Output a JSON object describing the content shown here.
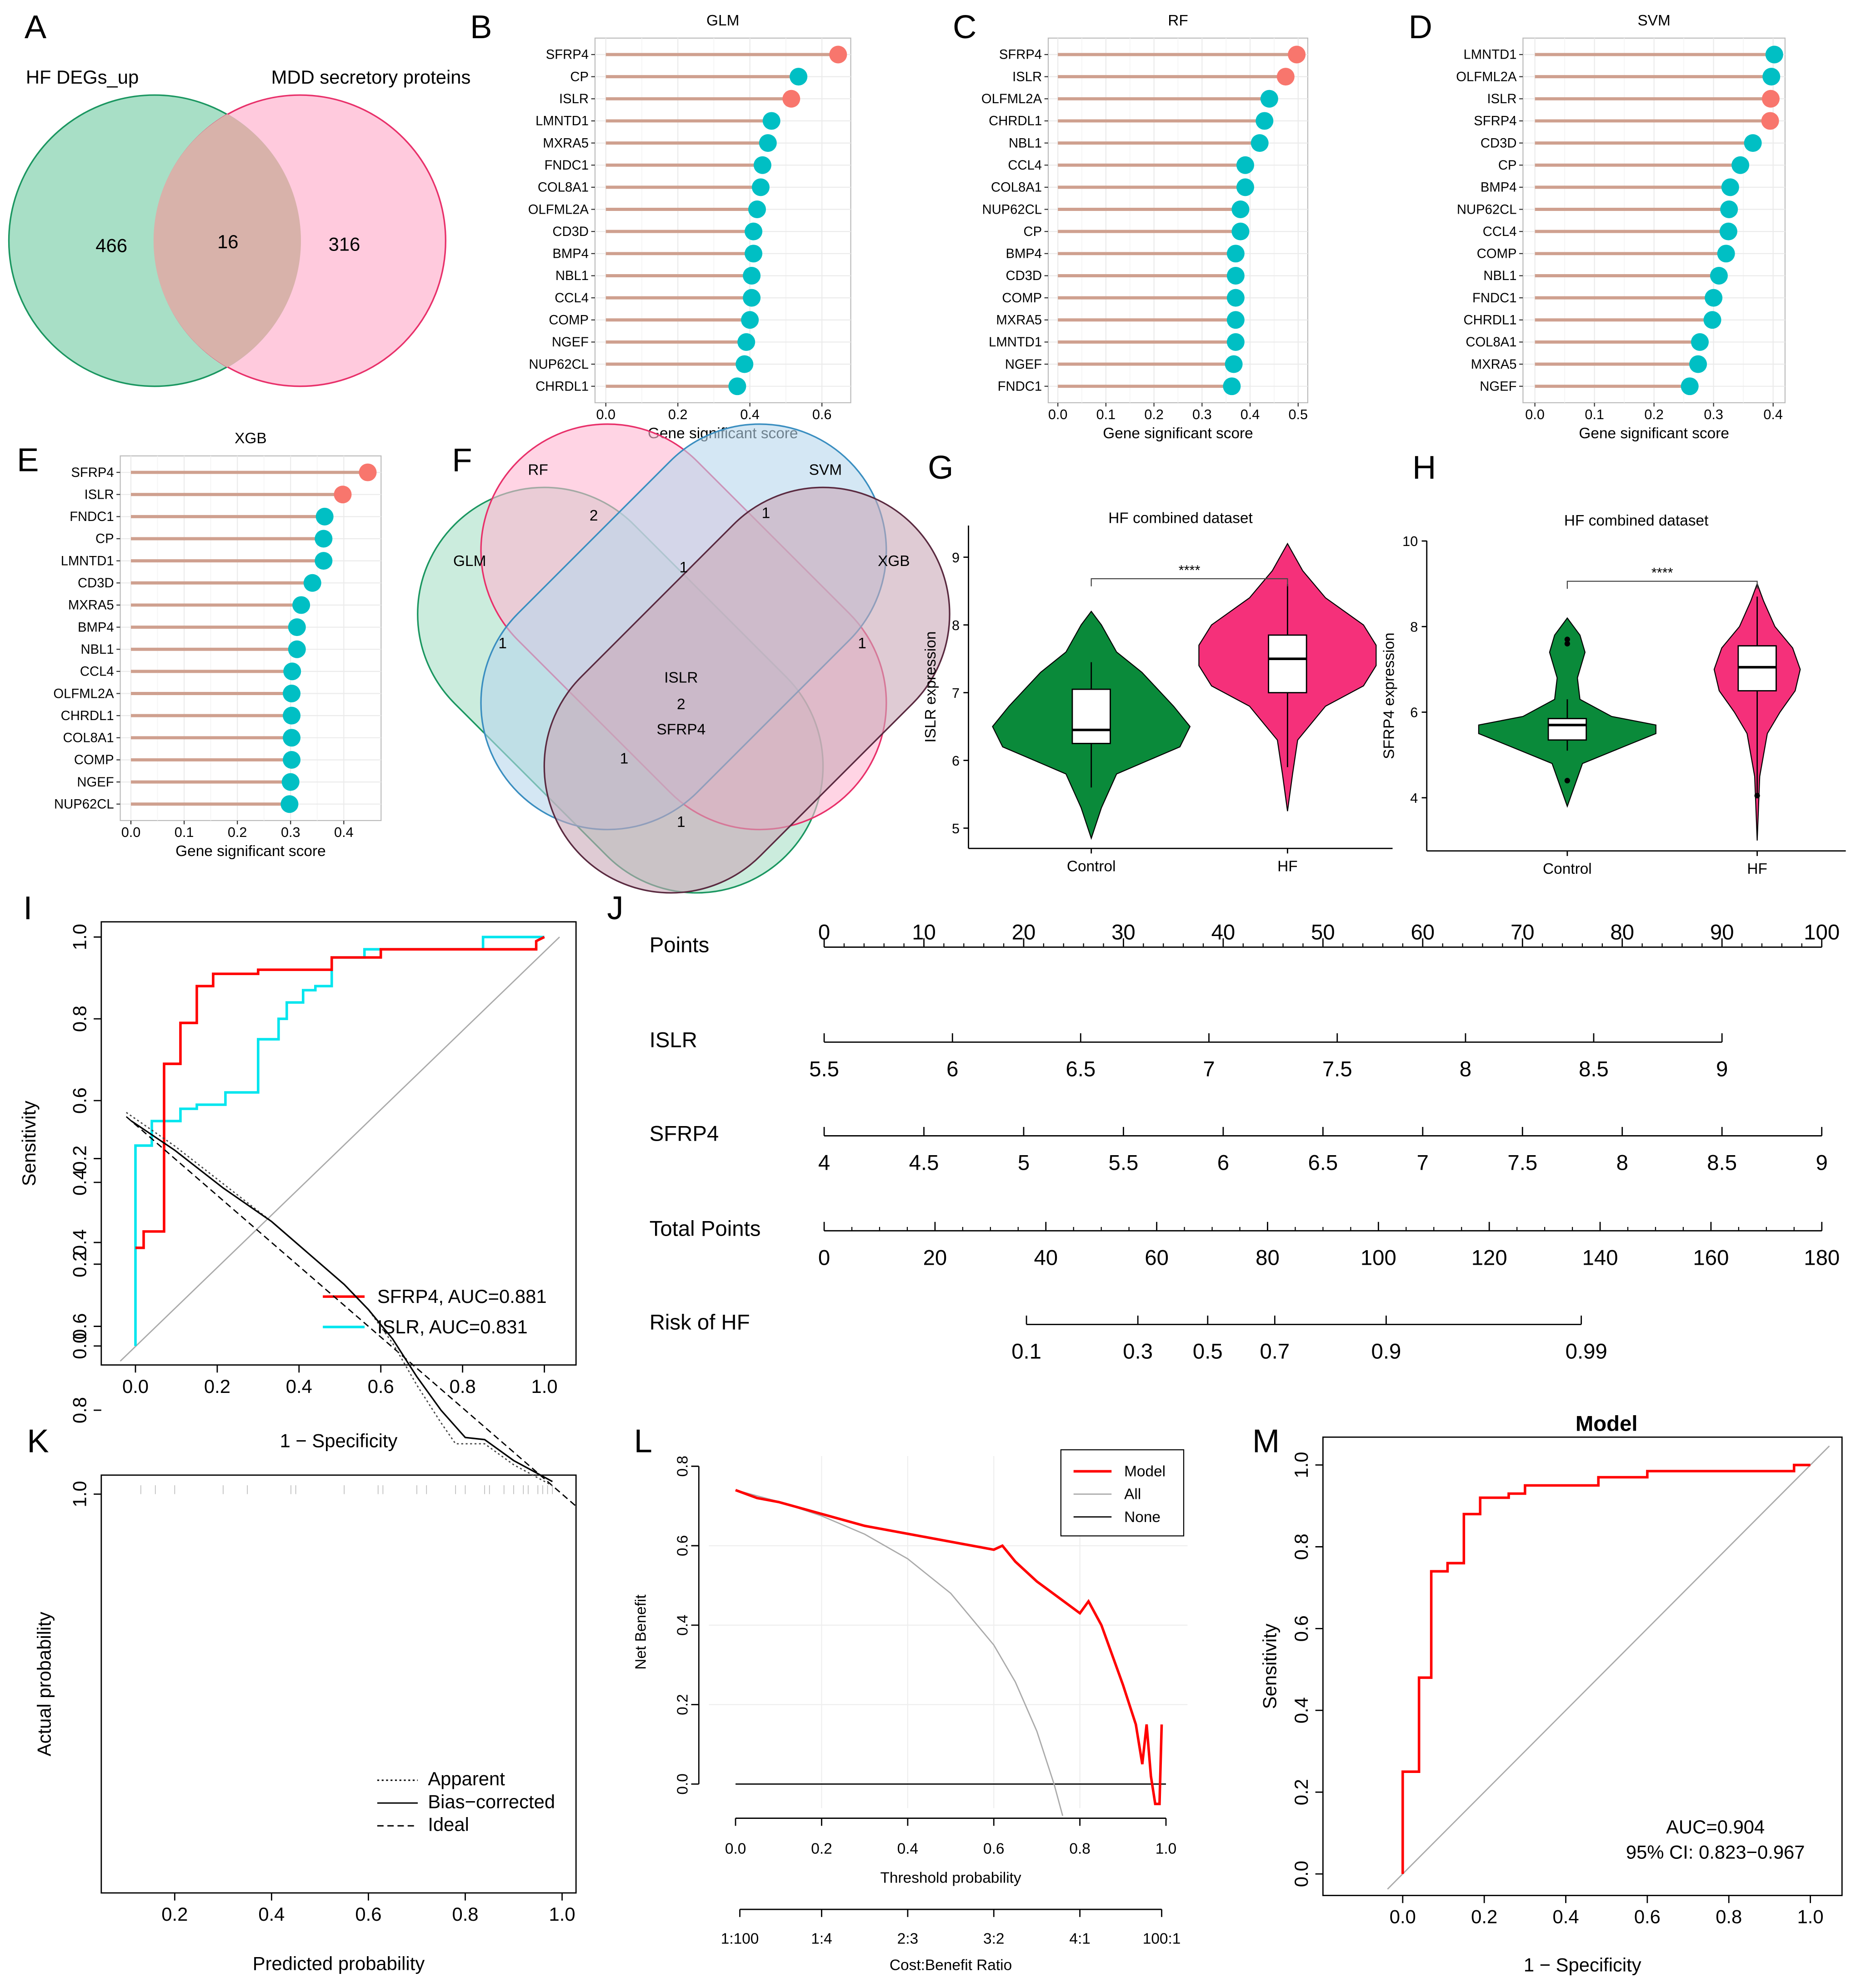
{
  "panel_letters": [
    "A",
    "B",
    "C",
    "D",
    "E",
    "F",
    "G",
    "H",
    "I",
    "J",
    "K",
    "L",
    "M"
  ],
  "chart_data": [
    {
      "panel": "A",
      "type": "venn",
      "sets": [
        "HF DEGs_up",
        "MDD secretory proteins"
      ],
      "counts": {
        "only_1": "466",
        "both": "16",
        "only_2": "316"
      },
      "colors": [
        "#a8dfc6",
        "#ffb8d2"
      ]
    },
    {
      "panel": "B",
      "type": "lollipop",
      "title": "GLM",
      "xlabel": "Gene significant score",
      "xticks": [
        "0.0",
        "0.2",
        "0.4",
        "0.6"
      ],
      "xlim": [
        -0.03,
        0.68
      ],
      "genes": [
        "SFRP4",
        "CP",
        "ISLR",
        "LMNTD1",
        "MXRA5",
        "FNDC1",
        "COL8A1",
        "OLFML2A",
        "CD3D",
        "BMP4",
        "NBL1",
        "CCL4",
        "COMP",
        "NGEF",
        "NUP62CL",
        "CHRDL1"
      ],
      "values": [
        0.645,
        0.535,
        0.515,
        0.46,
        0.45,
        0.435,
        0.43,
        0.42,
        0.41,
        0.41,
        0.405,
        0.405,
        0.4,
        0.39,
        0.385,
        0.365
      ]
    },
    {
      "panel": "C",
      "type": "lollipop",
      "title": "RF",
      "xlabel": "Gene significant score",
      "xticks": [
        "0.0",
        "0.1",
        "0.2",
        "0.3",
        "0.4",
        "0.5"
      ],
      "xlim": [
        -0.02,
        0.52
      ],
      "genes": [
        "SFRP4",
        "ISLR",
        "OLFML2A",
        "CHRDL1",
        "NBL1",
        "CCL4",
        "COL8A1",
        "NUP62CL",
        "CP",
        "BMP4",
        "CD3D",
        "COMP",
        "MXRA5",
        "LMNTD1",
        "NGEF",
        "FNDC1"
      ],
      "values": [
        0.497,
        0.474,
        0.44,
        0.43,
        0.42,
        0.39,
        0.39,
        0.38,
        0.38,
        0.37,
        0.37,
        0.37,
        0.37,
        0.37,
        0.366,
        0.362
      ]
    },
    {
      "panel": "D",
      "type": "lollipop",
      "title": "SVM",
      "xlabel": "Gene significant score",
      "xticks": [
        "0.0",
        "0.1",
        "0.2",
        "0.3",
        "0.4"
      ],
      "xlim": [
        -0.02,
        0.42
      ],
      "genes": [
        "LMNTD1",
        "OLFML2A",
        "ISLR",
        "SFRP4",
        "CD3D",
        "CP",
        "BMP4",
        "NUP62CL",
        "CCL4",
        "COMP",
        "NBL1",
        "FNDC1",
        "CHRDL1",
        "COL8A1",
        "MXRA5",
        "NGEF"
      ],
      "values": [
        0.402,
        0.397,
        0.396,
        0.395,
        0.366,
        0.345,
        0.328,
        0.326,
        0.325,
        0.321,
        0.309,
        0.3,
        0.298,
        0.277,
        0.274,
        0.26
      ]
    },
    {
      "panel": "E",
      "type": "lollipop",
      "title": "XGB",
      "xlabel": "Gene significant score",
      "xticks": [
        "0.0",
        "0.1",
        "0.2",
        "0.3",
        "0.4"
      ],
      "xlim": [
        -0.02,
        0.47
      ],
      "genes": [
        "SFRP4",
        "ISLR",
        "FNDC1",
        "CP",
        "LMNTD1",
        "CD3D",
        "MXRA5",
        "BMP4",
        "NBL1",
        "CCL4",
        "OLFML2A",
        "CHRDL1",
        "COL8A1",
        "COMP",
        "NGEF",
        "NUP62CL"
      ],
      "values": [
        0.445,
        0.398,
        0.364,
        0.362,
        0.362,
        0.341,
        0.32,
        0.312,
        0.312,
        0.303,
        0.302,
        0.302,
        0.302,
        0.302,
        0.3,
        0.298
      ]
    },
    {
      "panel": "F",
      "type": "venn",
      "sets": [
        "GLM",
        "RF",
        "SVM",
        "XGB"
      ],
      "counts": {
        "RF_only": "2",
        "SVM_only": "1",
        "GLM_only": "1",
        "XGB_only": "1",
        "RF_SVM": "1",
        "GLM_SVM_XGB": "1",
        "GLM_XGB": "1",
        "all": "2",
        "all_genes": [
          "ISLR",
          "SFRP4"
        ]
      },
      "colors": [
        "#a8dfc6",
        "#ffb8d2",
        "#b8d7ec",
        "#c9a8b8"
      ]
    },
    {
      "panel": "G",
      "type": "violin",
      "title": "HF combined dataset",
      "ylabel": "ISLR expression",
      "categories": [
        "Control",
        "HF"
      ],
      "yticks": [
        "5",
        "6",
        "7",
        "8",
        "9"
      ],
      "ylim": [
        4.6,
        9.5
      ],
      "significance": "****",
      "boxes": [
        {
          "min": 5.6,
          "q1": 6.25,
          "median": 6.45,
          "q3": 7.05,
          "max": 7.45
        },
        {
          "min": 5.9,
          "q1": 7.0,
          "median": 7.5,
          "q3": 7.85,
          "max": 8.6
        }
      ],
      "colors": [
        "#0a8a3a",
        "#f5307a"
      ]
    },
    {
      "panel": "H",
      "type": "violin",
      "title": "HF combined dataset",
      "ylabel": "SFRP4 expression",
      "categories": [
        "Control",
        "HF"
      ],
      "yticks": [
        "4",
        "6",
        "8",
        "10"
      ],
      "ylim": [
        3.3,
        10.2
      ],
      "significance": "****",
      "boxes": [
        {
          "min": 5.1,
          "q1": 5.35,
          "median": 5.7,
          "q3": 5.85,
          "max": 6.3,
          "outliers": [
            7.7,
            7.6,
            4.4
          ]
        },
        {
          "min": 4.1,
          "q1": 6.5,
          "median": 7.05,
          "q3": 7.55,
          "max": 8.7,
          "outliers": [
            4.05
          ]
        }
      ],
      "colors": [
        "#0a8a3a",
        "#f5307a"
      ]
    },
    {
      "panel": "I",
      "type": "line",
      "xlabel": "1 − Specificity",
      "ylabel": "Sensitivity",
      "xticks": [
        "0.0",
        "0.2",
        "0.4",
        "0.6",
        "0.8",
        "1.0"
      ],
      "yticks": [
        "0.0",
        "0.2",
        "0.4",
        "0.6",
        "0.8",
        "1.0"
      ],
      "legend": "bottom-right",
      "series": [
        {
          "name": "SFRP4, AUC=0.881",
          "color": "#ff0000",
          "x": [
            0,
            0.02,
            0.02,
            0.07,
            0.07,
            0.11,
            0.11,
            0.15,
            0.15,
            0.19,
            0.19,
            0.3,
            0.3,
            0.48,
            0.48,
            0.6,
            0.6,
            0.98,
            0.98,
            1
          ],
          "y": [
            0.24,
            0.24,
            0.28,
            0.28,
            0.69,
            0.69,
            0.79,
            0.79,
            0.88,
            0.88,
            0.91,
            0.91,
            0.92,
            0.92,
            0.95,
            0.95,
            0.97,
            0.97,
            0.99,
            1
          ]
        },
        {
          "name": "ISLR, AUC=0.831",
          "color": "#00e5ee",
          "x": [
            0,
            0,
            0.04,
            0.04,
            0.11,
            0.11,
            0.15,
            0.15,
            0.22,
            0.22,
            0.3,
            0.3,
            0.35,
            0.35,
            0.37,
            0.37,
            0.41,
            0.41,
            0.44,
            0.44,
            0.48,
            0.48,
            0.56,
            0.56,
            0.85,
            0.85,
            1
          ],
          "y": [
            0,
            0.49,
            0.49,
            0.55,
            0.55,
            0.58,
            0.58,
            0.59,
            0.59,
            0.62,
            0.62,
            0.75,
            0.75,
            0.8,
            0.8,
            0.84,
            0.84,
            0.87,
            0.87,
            0.88,
            0.88,
            0.95,
            0.95,
            0.97,
            0.97,
            1,
            1
          ]
        }
      ]
    },
    {
      "panel": "J",
      "type": "nomogram",
      "rows": [
        {
          "label": "Points",
          "ticks": [
            "0",
            "10",
            "20",
            "30",
            "40",
            "50",
            "60",
            "70",
            "80",
            "90",
            "100"
          ],
          "points": [
            0,
            10,
            20,
            30,
            40,
            50,
            60,
            70,
            80,
            90,
            100
          ]
        },
        {
          "label": "ISLR",
          "ticks": [
            "5.5",
            "6",
            "6.5",
            "7",
            "7.5",
            "8",
            "8.5",
            "9"
          ],
          "points": [
            0,
            12.86,
            25.71,
            38.57,
            51.43,
            64.29,
            77.14,
            90
          ]
        },
        {
          "label": "SFRP4",
          "ticks": [
            "4",
            "4.5",
            "5",
            "5.5",
            "6",
            "6.5",
            "7",
            "7.5",
            "8",
            "8.5",
            "9"
          ],
          "points": [
            0,
            10,
            20,
            30,
            40,
            50,
            60,
            70,
            80,
            90,
            100
          ]
        },
        {
          "label": "Total Points",
          "ticks": [
            "0",
            "20",
            "40",
            "60",
            "80",
            "100",
            "120",
            "140",
            "160",
            "180"
          ],
          "points": [
            0,
            20,
            40,
            60,
            80,
            100,
            120,
            140,
            160,
            180
          ],
          "scale": "total"
        },
        {
          "label": "Risk of HF",
          "ticks": [
            "0.1",
            "0.3",
            "0.5",
            "0.7",
            "0.9",
            "0.99"
          ],
          "points": [
            36.5,
            56.6,
            69.2,
            81.3,
            101.4,
            136.6
          ],
          "scale": "total"
        }
      ]
    },
    {
      "panel": "K",
      "type": "line",
      "xlabel": "Predicted probability",
      "ylabel": "Actual probability",
      "xticks": [
        "0.2",
        "0.4",
        "0.6",
        "0.8",
        "1.0"
      ],
      "yticks": [
        "0.2",
        "0.4",
        "0.6",
        "0.8",
        "1.0"
      ],
      "legend": "bottom-right",
      "series": [
        {
          "name": "Apparent",
          "dash": "dotted",
          "x": [
            0.1,
            0.2,
            0.3,
            0.4,
            0.48,
            0.55,
            0.6,
            0.65,
            0.7,
            0.75,
            0.78,
            0.84,
            0.9,
            0.98
          ],
          "y": [
            0.09,
            0.17,
            0.26,
            0.35,
            0.43,
            0.5,
            0.56,
            0.64,
            0.74,
            0.83,
            0.88,
            0.88,
            0.93,
            0.98
          ]
        },
        {
          "name": "Bias−corrected",
          "dash": "solid",
          "x": [
            0.11,
            0.2,
            0.3,
            0.4,
            0.48,
            0.55,
            0.6,
            0.65,
            0.7,
            0.75,
            0.8,
            0.84,
            0.9,
            0.98
          ],
          "y": [
            0.11,
            0.18,
            0.27,
            0.35,
            0.43,
            0.5,
            0.56,
            0.63,
            0.72,
            0.8,
            0.865,
            0.87,
            0.92,
            0.97
          ]
        },
        {
          "name": "Ideal",
          "dash": "dashed",
          "x": [
            0.1,
            1.03
          ],
          "y": [
            0.1,
            1.03
          ]
        }
      ]
    },
    {
      "panel": "L",
      "type": "line",
      "xlabel": "Threshold probability",
      "ylabel": "Net Benefit",
      "xticks": [
        "0.0",
        "0.2",
        "0.4",
        "0.6",
        "0.8",
        "1.0"
      ],
      "yticks": [
        "0.0",
        "0.2",
        "0.4",
        "0.6",
        "0.8"
      ],
      "legend": "top-right",
      "secondary_axis": {
        "label": "Cost:Benefit Ratio",
        "ticks": [
          "1:100",
          "1:4",
          "2:3",
          "3:2",
          "4:1",
          "100:1"
        ],
        "at": [
          0.01,
          0.2,
          0.4,
          0.6,
          0.8,
          0.99
        ]
      },
      "series": [
        {
          "name": "Model",
          "color": "#ff0000",
          "x": [
            0,
            0.05,
            0.1,
            0.2,
            0.3,
            0.4,
            0.45,
            0.5,
            0.55,
            0.6,
            0.62,
            0.65,
            0.7,
            0.75,
            0.8,
            0.82,
            0.85,
            0.9,
            0.93,
            0.945,
            0.955,
            0.965,
            0.975,
            0.985,
            0.99
          ],
          "y": [
            0.74,
            0.72,
            0.71,
            0.68,
            0.65,
            0.63,
            0.62,
            0.61,
            0.6,
            0.59,
            0.6,
            0.56,
            0.51,
            0.47,
            0.43,
            0.46,
            0.4,
            0.25,
            0.15,
            0.05,
            0.15,
            0.02,
            -0.05,
            -0.05,
            0.15
          ]
        },
        {
          "name": "All",
          "color": "#aaaaaa",
          "x": [
            0,
            0.1,
            0.2,
            0.3,
            0.4,
            0.5,
            0.6,
            0.65,
            0.7,
            0.74,
            0.76
          ],
          "y": [
            0.74,
            0.711,
            0.675,
            0.629,
            0.567,
            0.48,
            0.35,
            0.257,
            0.133,
            0.0,
            -0.08
          ]
        },
        {
          "name": "None",
          "color": "#000000",
          "x": [
            0,
            1
          ],
          "y": [
            0,
            0
          ]
        }
      ]
    },
    {
      "panel": "M",
      "type": "line",
      "title": "Model",
      "xlabel": "1 − Specificity",
      "ylabel": "Sensitivity",
      "xticks": [
        "0.0",
        "0.2",
        "0.4",
        "0.6",
        "0.8",
        "1.0"
      ],
      "yticks": [
        "0.0",
        "0.2",
        "0.4",
        "0.6",
        "0.8",
        "1.0"
      ],
      "annotations": [
        "AUC=0.904",
        "95% CI: 0.823−0.967"
      ],
      "series": [
        {
          "color": "#ff0000",
          "x": [
            0,
            0,
            0.04,
            0.04,
            0.07,
            0.07,
            0.11,
            0.11,
            0.15,
            0.15,
            0.19,
            0.19,
            0.26,
            0.26,
            0.3,
            0.3,
            0.48,
            0.48,
            0.6,
            0.6,
            0.96,
            0.96,
            1
          ],
          "y": [
            0,
            0.25,
            0.25,
            0.48,
            0.48,
            0.74,
            0.74,
            0.76,
            0.76,
            0.88,
            0.88,
            0.92,
            0.92,
            0.93,
            0.93,
            0.95,
            0.95,
            0.97,
            0.97,
            0.985,
            0.985,
            1,
            1
          ]
        }
      ]
    }
  ],
  "colors": {
    "highlight": "#f8766d",
    "lollipop": "#00bfc4",
    "stem": "#cfa08f"
  }
}
